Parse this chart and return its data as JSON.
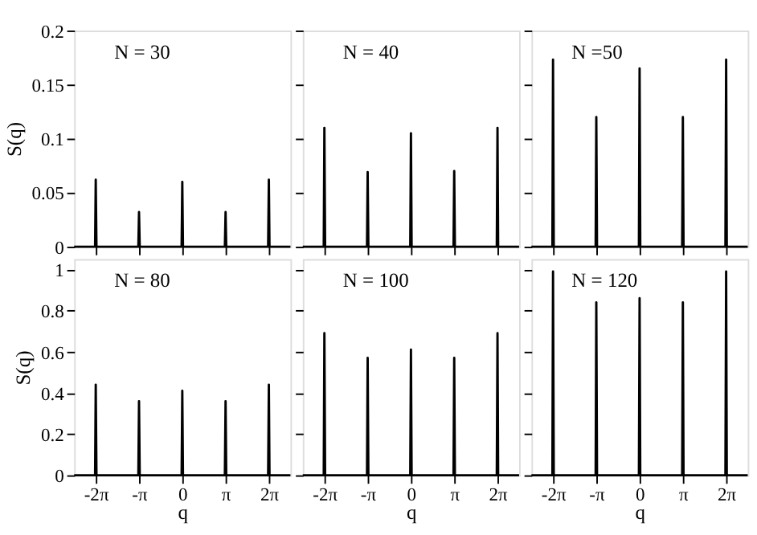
{
  "chart_data": [
    {
      "type": "line",
      "ylabel": "S(q)",
      "annotations": [
        "N = 30"
      ],
      "tick_labels": "y",
      "grid": false,
      "xlim": [
        -7.85,
        7.85
      ],
      "ylim": [
        0,
        0.2
      ],
      "yticks": [
        0,
        0.05,
        0.1,
        0.15,
        0.2
      ],
      "xticks": [
        {
          "value": -6.2832,
          "label": null
        },
        {
          "value": -3.1416,
          "label": null
        },
        {
          "value": 0,
          "label": null
        },
        {
          "value": 3.1416,
          "label": null
        },
        {
          "value": 6.2832,
          "label": null
        }
      ],
      "x": [
        -7.85,
        -6.33,
        -6.2832,
        -6.23,
        -3.19,
        -3.1416,
        -3.09,
        -0.05,
        0,
        0.05,
        3.09,
        3.1416,
        3.19,
        6.23,
        6.2832,
        6.33,
        7.85
      ],
      "series": [
        {
          "color": "#000000",
          "values": [
            0,
            0,
            0.062,
            0,
            0,
            0.032,
            0,
            0,
            0.06,
            0,
            0,
            0.032,
            0,
            0,
            0.062,
            0,
            0
          ]
        }
      ]
    },
    {
      "type": "line",
      "annotations": [
        "N = 40"
      ],
      "tick_labels": false,
      "grid": false,
      "xlim": [
        -7.85,
        7.85
      ],
      "ylim": [
        0,
        0.2
      ],
      "yticks": [
        0,
        0.05,
        0.1,
        0.15,
        0.2
      ],
      "xticks": [
        {
          "value": -6.2832,
          "label": null
        },
        {
          "value": -3.1416,
          "label": null
        },
        {
          "value": 0,
          "label": null
        },
        {
          "value": 3.1416,
          "label": null
        },
        {
          "value": 6.2832,
          "label": null
        }
      ],
      "x": [
        -7.85,
        -6.33,
        -6.2832,
        -6.23,
        -3.19,
        -3.1416,
        -3.09,
        -0.05,
        0,
        0.05,
        3.09,
        3.1416,
        3.19,
        6.23,
        6.2832,
        6.33,
        7.85
      ],
      "series": [
        {
          "color": "#000000",
          "values": [
            0,
            0,
            0.11,
            0,
            0,
            0.069,
            0,
            0,
            0.105,
            0,
            0,
            0.07,
            0,
            0,
            0.11,
            0,
            0
          ]
        }
      ]
    },
    {
      "type": "line",
      "annotations": [
        "N =50"
      ],
      "tick_labels": false,
      "grid": false,
      "xlim": [
        -7.85,
        7.85
      ],
      "ylim": [
        0,
        0.2
      ],
      "yticks": [
        0,
        0.05,
        0.1,
        0.15,
        0.2
      ],
      "xticks": [
        {
          "value": -6.2832,
          "label": null
        },
        {
          "value": -3.1416,
          "label": null
        },
        {
          "value": 0,
          "label": null
        },
        {
          "value": 3.1416,
          "label": null
        },
        {
          "value": 6.2832,
          "label": null
        }
      ],
      "x": [
        -7.85,
        -6.33,
        -6.2832,
        -6.23,
        -3.19,
        -3.1416,
        -3.09,
        -0.05,
        0,
        0.05,
        3.09,
        3.1416,
        3.19,
        6.23,
        6.2832,
        6.33,
        7.85
      ],
      "series": [
        {
          "color": "#000000",
          "values": [
            0,
            0,
            0.173,
            0,
            0,
            0.12,
            0,
            0,
            0.165,
            0,
            0,
            0.12,
            0,
            0,
            0.173,
            0,
            0
          ]
        }
      ]
    },
    {
      "type": "line",
      "ylabel": "S(q)",
      "xlabel": "q",
      "annotations": [
        "N = 80"
      ],
      "grid": false,
      "xlim": [
        -7.85,
        7.85
      ],
      "ylim": [
        0,
        1.05
      ],
      "yticks": [
        0,
        0.2,
        0.4,
        0.6,
        0.8,
        1
      ],
      "xticks": [
        {
          "value": -6.2832,
          "label": "-2π"
        },
        {
          "value": -3.1416,
          "label": "-π"
        },
        0,
        {
          "value": 3.1416,
          "label": "π"
        },
        {
          "value": 6.2832,
          "label": "2π"
        }
      ],
      "x": [
        -7.85,
        -6.33,
        -6.2832,
        -6.23,
        -3.19,
        -3.1416,
        -3.09,
        -0.05,
        0,
        0.05,
        3.09,
        3.1416,
        3.19,
        6.23,
        6.2832,
        6.33,
        7.85
      ],
      "series": [
        {
          "color": "#000000",
          "values": [
            0,
            0,
            0.44,
            0,
            0,
            0.36,
            0,
            0,
            0.41,
            0,
            0,
            0.36,
            0,
            0,
            0.44,
            0,
            0
          ]
        }
      ]
    },
    {
      "type": "line",
      "xlabel": "q",
      "annotations": [
        "N = 100"
      ],
      "tick_labels": "x",
      "grid": false,
      "xlim": [
        -7.85,
        7.85
      ],
      "ylim": [
        0,
        1.05
      ],
      "yticks": [
        0,
        0.2,
        0.4,
        0.6,
        0.8,
        1
      ],
      "xticks": [
        {
          "value": -6.2832,
          "label": "-2π"
        },
        {
          "value": -3.1416,
          "label": "-π"
        },
        0,
        {
          "value": 3.1416,
          "label": "π"
        },
        {
          "value": 6.2832,
          "label": "2π"
        }
      ],
      "x": [
        -7.85,
        -6.33,
        -6.2832,
        -6.23,
        -3.19,
        -3.1416,
        -3.09,
        -0.05,
        0,
        0.05,
        3.09,
        3.1416,
        3.19,
        6.23,
        6.2832,
        6.33,
        7.85
      ],
      "series": [
        {
          "color": "#000000",
          "values": [
            0,
            0,
            0.69,
            0,
            0,
            0.57,
            0,
            0,
            0.61,
            0,
            0,
            0.57,
            0,
            0,
            0.69,
            0,
            0
          ]
        }
      ]
    },
    {
      "type": "line",
      "xlabel": "q",
      "annotations": [
        "N = 120"
      ],
      "tick_labels": "x",
      "grid": false,
      "xlim": [
        -7.85,
        7.85
      ],
      "ylim": [
        0,
        1.05
      ],
      "yticks": [
        0,
        0.2,
        0.4,
        0.6,
        0.8,
        1
      ],
      "xticks": [
        {
          "value": -6.2832,
          "label": "-2π"
        },
        {
          "value": -3.1416,
          "label": "-π"
        },
        0,
        {
          "value": 3.1416,
          "label": "π"
        },
        {
          "value": 6.2832,
          "label": "2π"
        }
      ],
      "x": [
        -7.85,
        -6.33,
        -6.2832,
        -6.23,
        -3.19,
        -3.1416,
        -3.09,
        -0.05,
        0,
        0.05,
        3.09,
        3.1416,
        3.19,
        6.23,
        6.2832,
        6.33,
        7.85
      ],
      "series": [
        {
          "color": "#000000",
          "values": [
            0,
            0,
            0.99,
            0,
            0,
            0.84,
            0,
            0,
            0.86,
            0,
            0,
            0.84,
            0,
            0,
            0.99,
            0,
            0
          ]
        }
      ]
    }
  ]
}
